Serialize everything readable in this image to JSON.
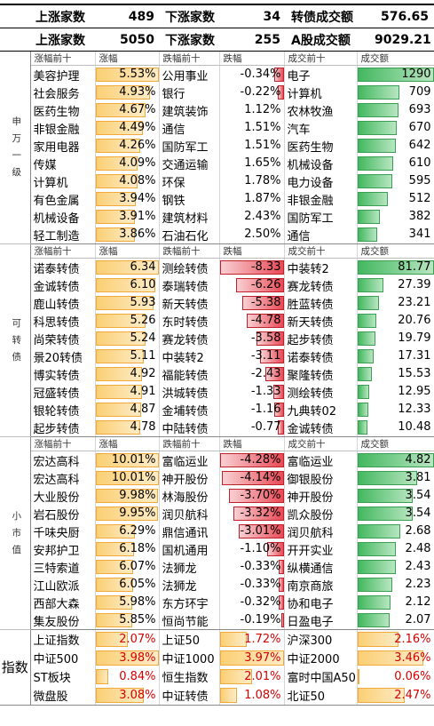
{
  "summary": [
    {
      "up_label": "上涨家数",
      "up_value": "489",
      "down_label": "下涨家数",
      "down_value": "34",
      "turnover_label": "转债成交额",
      "turnover_value": "576.65"
    },
    {
      "up_label": "上涨家数",
      "up_value": "5050",
      "down_label": "下涨家数",
      "down_value": "255",
      "turnover_label": "A股成交额",
      "turnover_value": "9029.21"
    }
  ],
  "sections": [
    {
      "title": "申万一级",
      "headers": [
        "涨幅前十",
        "涨幅",
        "跌幅前十",
        "跌幅",
        "成交前十",
        "成交额"
      ],
      "rows": [
        {
          "gname": "美容护理",
          "gain": "5.53%",
          "gain_pct": 100,
          "lname": "公用事业",
          "loss": "-0.34%",
          "loss_pct": 14,
          "vname": "电子",
          "vol": "1290",
          "vol_pct": 100
        },
        {
          "gname": "社会服务",
          "gain": "4.93%",
          "gain_pct": 86,
          "lname": "银行",
          "loss": "-0.22%",
          "loss_pct": 9,
          "vname": "计算机",
          "vol": "709",
          "vol_pct": 55
        },
        {
          "gname": "医药生物",
          "gain": "4.67%",
          "gain_pct": 80,
          "lname": "建筑装饰",
          "loss": "1.12%",
          "loss_pct": 0,
          "vname": "农林牧渔",
          "vol": "693",
          "vol_pct": 54
        },
        {
          "gname": "非银金融",
          "gain": "4.49%",
          "gain_pct": 76,
          "lname": "通信",
          "loss": "1.51%",
          "loss_pct": 0,
          "vname": "汽车",
          "vol": "670",
          "vol_pct": 52
        },
        {
          "gname": "家用电器",
          "gain": "4.26%",
          "gain_pct": 71,
          "lname": "国防军工",
          "loss": "1.51%",
          "loss_pct": 0,
          "vname": "医药生物",
          "vol": "642",
          "vol_pct": 50
        },
        {
          "gname": "传媒",
          "gain": "4.09%",
          "gain_pct": 67,
          "lname": "交通运输",
          "loss": "1.65%",
          "loss_pct": 0,
          "vname": "机械设备",
          "vol": "610",
          "vol_pct": 47
        },
        {
          "gname": "计算机",
          "gain": "4.08%",
          "gain_pct": 67,
          "lname": "环保",
          "loss": "1.78%",
          "loss_pct": 0,
          "vname": "电力设备",
          "vol": "595",
          "vol_pct": 46
        },
        {
          "gname": "有色金属",
          "gain": "3.94%",
          "gain_pct": 64,
          "lname": "钢铁",
          "loss": "1.87%",
          "loss_pct": 0,
          "vname": "非银金融",
          "vol": "512",
          "vol_pct": 40
        },
        {
          "gname": "机械设备",
          "gain": "3.91%",
          "gain_pct": 63,
          "lname": "建筑材料",
          "loss": "2.43%",
          "loss_pct": 0,
          "vname": "国防军工",
          "vol": "382",
          "vol_pct": 30
        },
        {
          "gname": "轻工制造",
          "gain": "3.86%",
          "gain_pct": 62,
          "lname": "石油石化",
          "loss": "2.50%",
          "loss_pct": 0,
          "vname": "通信",
          "vol": "341",
          "vol_pct": 26
        }
      ]
    },
    {
      "title": "可转债",
      "headers": [
        "涨幅前十",
        "涨幅",
        "跌幅前十",
        "跌幅",
        "成交前十",
        "成交额"
      ],
      "rows": [
        {
          "gname": "诺泰转债",
          "gain": "6.34",
          "gain_pct": 100,
          "lname": "测绘转债",
          "loss": "-8.33",
          "loss_pct": 100,
          "vname": "中装转2",
          "vol": "81.77",
          "vol_pct": 100
        },
        {
          "gname": "金诚转债",
          "gain": "6.10",
          "gain_pct": 95,
          "lname": "泰瑞转债",
          "loss": "-6.26",
          "loss_pct": 75,
          "vname": "赛龙转债",
          "vol": "27.39",
          "vol_pct": 34
        },
        {
          "gname": "鹿山转债",
          "gain": "5.93",
          "gain_pct": 92,
          "lname": "新天转债",
          "loss": "-5.38",
          "loss_pct": 65,
          "vname": "胜蓝转债",
          "vol": "23.21",
          "vol_pct": 28
        },
        {
          "gname": "科思转债",
          "gain": "5.26",
          "gain_pct": 80,
          "lname": "东时转债",
          "loss": "-4.78",
          "loss_pct": 57,
          "vname": "新天转债",
          "vol": "20.76",
          "vol_pct": 25
        },
        {
          "gname": "尚荣转债",
          "gain": "5.24",
          "gain_pct": 80,
          "lname": "赛龙转债",
          "loss": "-3.58",
          "loss_pct": 43,
          "vname": "起步转债",
          "vol": "19.79",
          "vol_pct": 24
        },
        {
          "gname": "景20转债",
          "gain": "5.11",
          "gain_pct": 77,
          "lname": "中装转2",
          "loss": "-3.11",
          "loss_pct": 37,
          "vname": "诺泰转债",
          "vol": "17.31",
          "vol_pct": 21
        },
        {
          "gname": "博实转债",
          "gain": "4.92",
          "gain_pct": 74,
          "lname": "福能转债",
          "loss": "-2.43",
          "loss_pct": 29,
          "vname": "聚隆转债",
          "vol": "15.53",
          "vol_pct": 19
        },
        {
          "gname": "冠盛转债",
          "gain": "4.91",
          "gain_pct": 74,
          "lname": "洪城转债",
          "loss": "-1.33",
          "loss_pct": 16,
          "vname": "测绘转债",
          "vol": "12.95",
          "vol_pct": 16
        },
        {
          "gname": "银轮转债",
          "gain": "4.87",
          "gain_pct": 73,
          "lname": "金埔转债",
          "loss": "-1.16",
          "loss_pct": 14,
          "vname": "九典转02",
          "vol": "12.33",
          "vol_pct": 15
        },
        {
          "gname": "起步转债",
          "gain": "4.78",
          "gain_pct": 71,
          "lname": "中陆转债",
          "loss": "-0.77",
          "loss_pct": 9,
          "vname": "金诚转债",
          "vol": "10.48",
          "vol_pct": 13
        }
      ]
    },
    {
      "title": "小市值",
      "headers": [
        "涨幅前十",
        "涨幅",
        "跌幅前十",
        "跌幅",
        "成交前十",
        "成交额"
      ],
      "rows": [
        {
          "gname": "宏达高科",
          "gain": "10.01%",
          "gain_pct": 100,
          "lname": "富临运业",
          "loss": "-4.28%",
          "loss_pct": 100,
          "vname": "富临运业",
          "vol": "4.82",
          "vol_pct": 100
        },
        {
          "gname": "宏达高科",
          "gain": "10.01%",
          "gain_pct": 100,
          "lname": "神开股份",
          "loss": "-4.14%",
          "loss_pct": 97,
          "vname": "御银股份",
          "vol": "3.81",
          "vol_pct": 79
        },
        {
          "gname": "大业股份",
          "gain": "9.98%",
          "gain_pct": 99,
          "lname": "林海股份",
          "loss": "-3.70%",
          "loss_pct": 86,
          "vname": "神开股份",
          "vol": "3.54",
          "vol_pct": 73
        },
        {
          "gname": "岩石股份",
          "gain": "9.95%",
          "gain_pct": 99,
          "lname": "润贝航科",
          "loss": "-3.32%",
          "loss_pct": 78,
          "vname": "凯众股份",
          "vol": "3.54",
          "vol_pct": 73
        },
        {
          "gname": "千味央厨",
          "gain": "6.29%",
          "gain_pct": 62,
          "lname": "鼎信通讯",
          "loss": "-3.01%",
          "loss_pct": 70,
          "vname": "润贝航科",
          "vol": "2.68",
          "vol_pct": 56
        },
        {
          "gname": "安邦护卫",
          "gain": "6.18%",
          "gain_pct": 61,
          "lname": "国机通用",
          "loss": "-1.10%",
          "loss_pct": 26,
          "vname": "开开实业",
          "vol": "2.48",
          "vol_pct": 51
        },
        {
          "gname": "三特索道",
          "gain": "6.07%",
          "gain_pct": 60,
          "lname": "法狮龙",
          "loss": "-0.33%",
          "loss_pct": 8,
          "vname": "纵横通信",
          "vol": "2.43",
          "vol_pct": 50
        },
        {
          "gname": "江山欧派",
          "gain": "6.05%",
          "gain_pct": 60,
          "lname": "法狮龙",
          "loss": "-0.33%",
          "loss_pct": 8,
          "vname": "南京商旅",
          "vol": "2.23",
          "vol_pct": 46
        },
        {
          "gname": "西部大森",
          "gain": "5.98%",
          "gain_pct": 59,
          "lname": "东方环宇",
          "loss": "-0.32%",
          "loss_pct": 7,
          "vname": "协和电子",
          "vol": "2.12",
          "vol_pct": 44
        },
        {
          "gname": "集友股份",
          "gain": "5.85%",
          "gain_pct": 58,
          "lname": "恒尚节能",
          "loss": "-0.19%",
          "loss_pct": 4,
          "vname": "日盈电子",
          "vol": "2.07",
          "vol_pct": 43
        }
      ]
    }
  ],
  "index": {
    "title": "指数",
    "rows": [
      [
        {
          "name": "上证指数",
          "value": "2.07%",
          "pct": 52
        },
        {
          "name": "上证50",
          "value": "1.72%",
          "pct": 43
        },
        {
          "name": "沪深300",
          "value": "2.16%",
          "pct": 54
        }
      ],
      [
        {
          "name": "中证500",
          "value": "3.98%",
          "pct": 100
        },
        {
          "name": "中证1000",
          "value": "3.97%",
          "pct": 100
        },
        {
          "name": "中证2000",
          "value": "3.46%",
          "pct": 87
        }
      ],
      [
        {
          "name": "ST板块",
          "value": "0.84%",
          "pct": 21
        },
        {
          "name": "恒生指数",
          "value": "2.01%",
          "pct": 50
        },
        {
          "name": "富时中国A50",
          "value": "0.06%",
          "pct": 2
        }
      ],
      [
        {
          "name": "微盘股",
          "value": "3.08%",
          "pct": 77
        },
        {
          "name": "中证转债",
          "value": "1.08%",
          "pct": 27
        },
        {
          "name": "北证50",
          "value": "2.47%",
          "pct": 62
        }
      ]
    ]
  }
}
